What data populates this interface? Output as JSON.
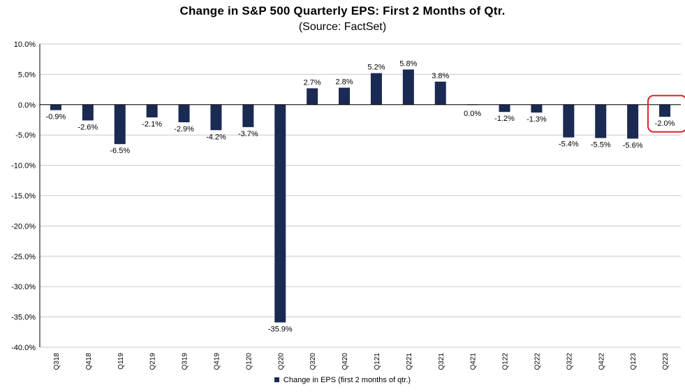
{
  "title": "Change in S&P 500 Quarterly EPS: First 2 Months of Qtr.",
  "subtitle": "(Source: FactSet)",
  "legend": {
    "label": "Change in EPS (first 2 months of qtr.)",
    "color": "#1b2a52"
  },
  "colors": {
    "bar": "#1b2a52",
    "highlight": "#d9232e",
    "grid": "#c8c8c8",
    "axis": "#000000"
  },
  "chart_data": {
    "type": "bar",
    "title": "Change in S&P 500 Quarterly EPS: First 2 Months of Qtr.",
    "subtitle": "(Source: FactSet)",
    "categories": [
      "Q318",
      "Q418",
      "Q119",
      "Q219",
      "Q319",
      "Q419",
      "Q120",
      "Q220",
      "Q320",
      "Q420",
      "Q121",
      "Q221",
      "Q321",
      "Q421",
      "Q122",
      "Q222",
      "Q322",
      "Q422",
      "Q123",
      "Q223"
    ],
    "series": [
      {
        "name": "Change in EPS (first 2 months of qtr.)",
        "values": [
          -0.9,
          -2.6,
          -6.5,
          -2.1,
          -2.9,
          -4.2,
          -3.7,
          -35.9,
          2.7,
          2.8,
          5.2,
          5.8,
          3.8,
          0.0,
          -1.2,
          -1.3,
          -5.4,
          -5.5,
          -5.6,
          -2.0
        ]
      }
    ],
    "data_labels": [
      "-0.9%",
      "-2.6%",
      "-6.5%",
      "-2.1%",
      "-2.9%",
      "-4.2%",
      "-3.7%",
      "-35.9%",
      "2.7%",
      "2.8%",
      "5.2%",
      "5.8%",
      "3.8%",
      "0.0%",
      "-1.2%",
      "-1.3%",
      "-5.4%",
      "-5.5%",
      "-5.6%",
      "-2.0%"
    ],
    "ylim": [
      -40,
      10
    ],
    "yticks": [
      10,
      5,
      0,
      -5,
      -10,
      -15,
      -20,
      -25,
      -30,
      -35,
      -40
    ],
    "ytick_labels": [
      "10.0%",
      "5.0%",
      "0.0%",
      "-5.0%",
      "-10.0%",
      "-15.0%",
      "-20.0%",
      "-25.0%",
      "-30.0%",
      "-35.0%",
      "-40.0%"
    ],
    "grid": true,
    "legend_position": "bottom",
    "highlight_category": "Q223"
  }
}
